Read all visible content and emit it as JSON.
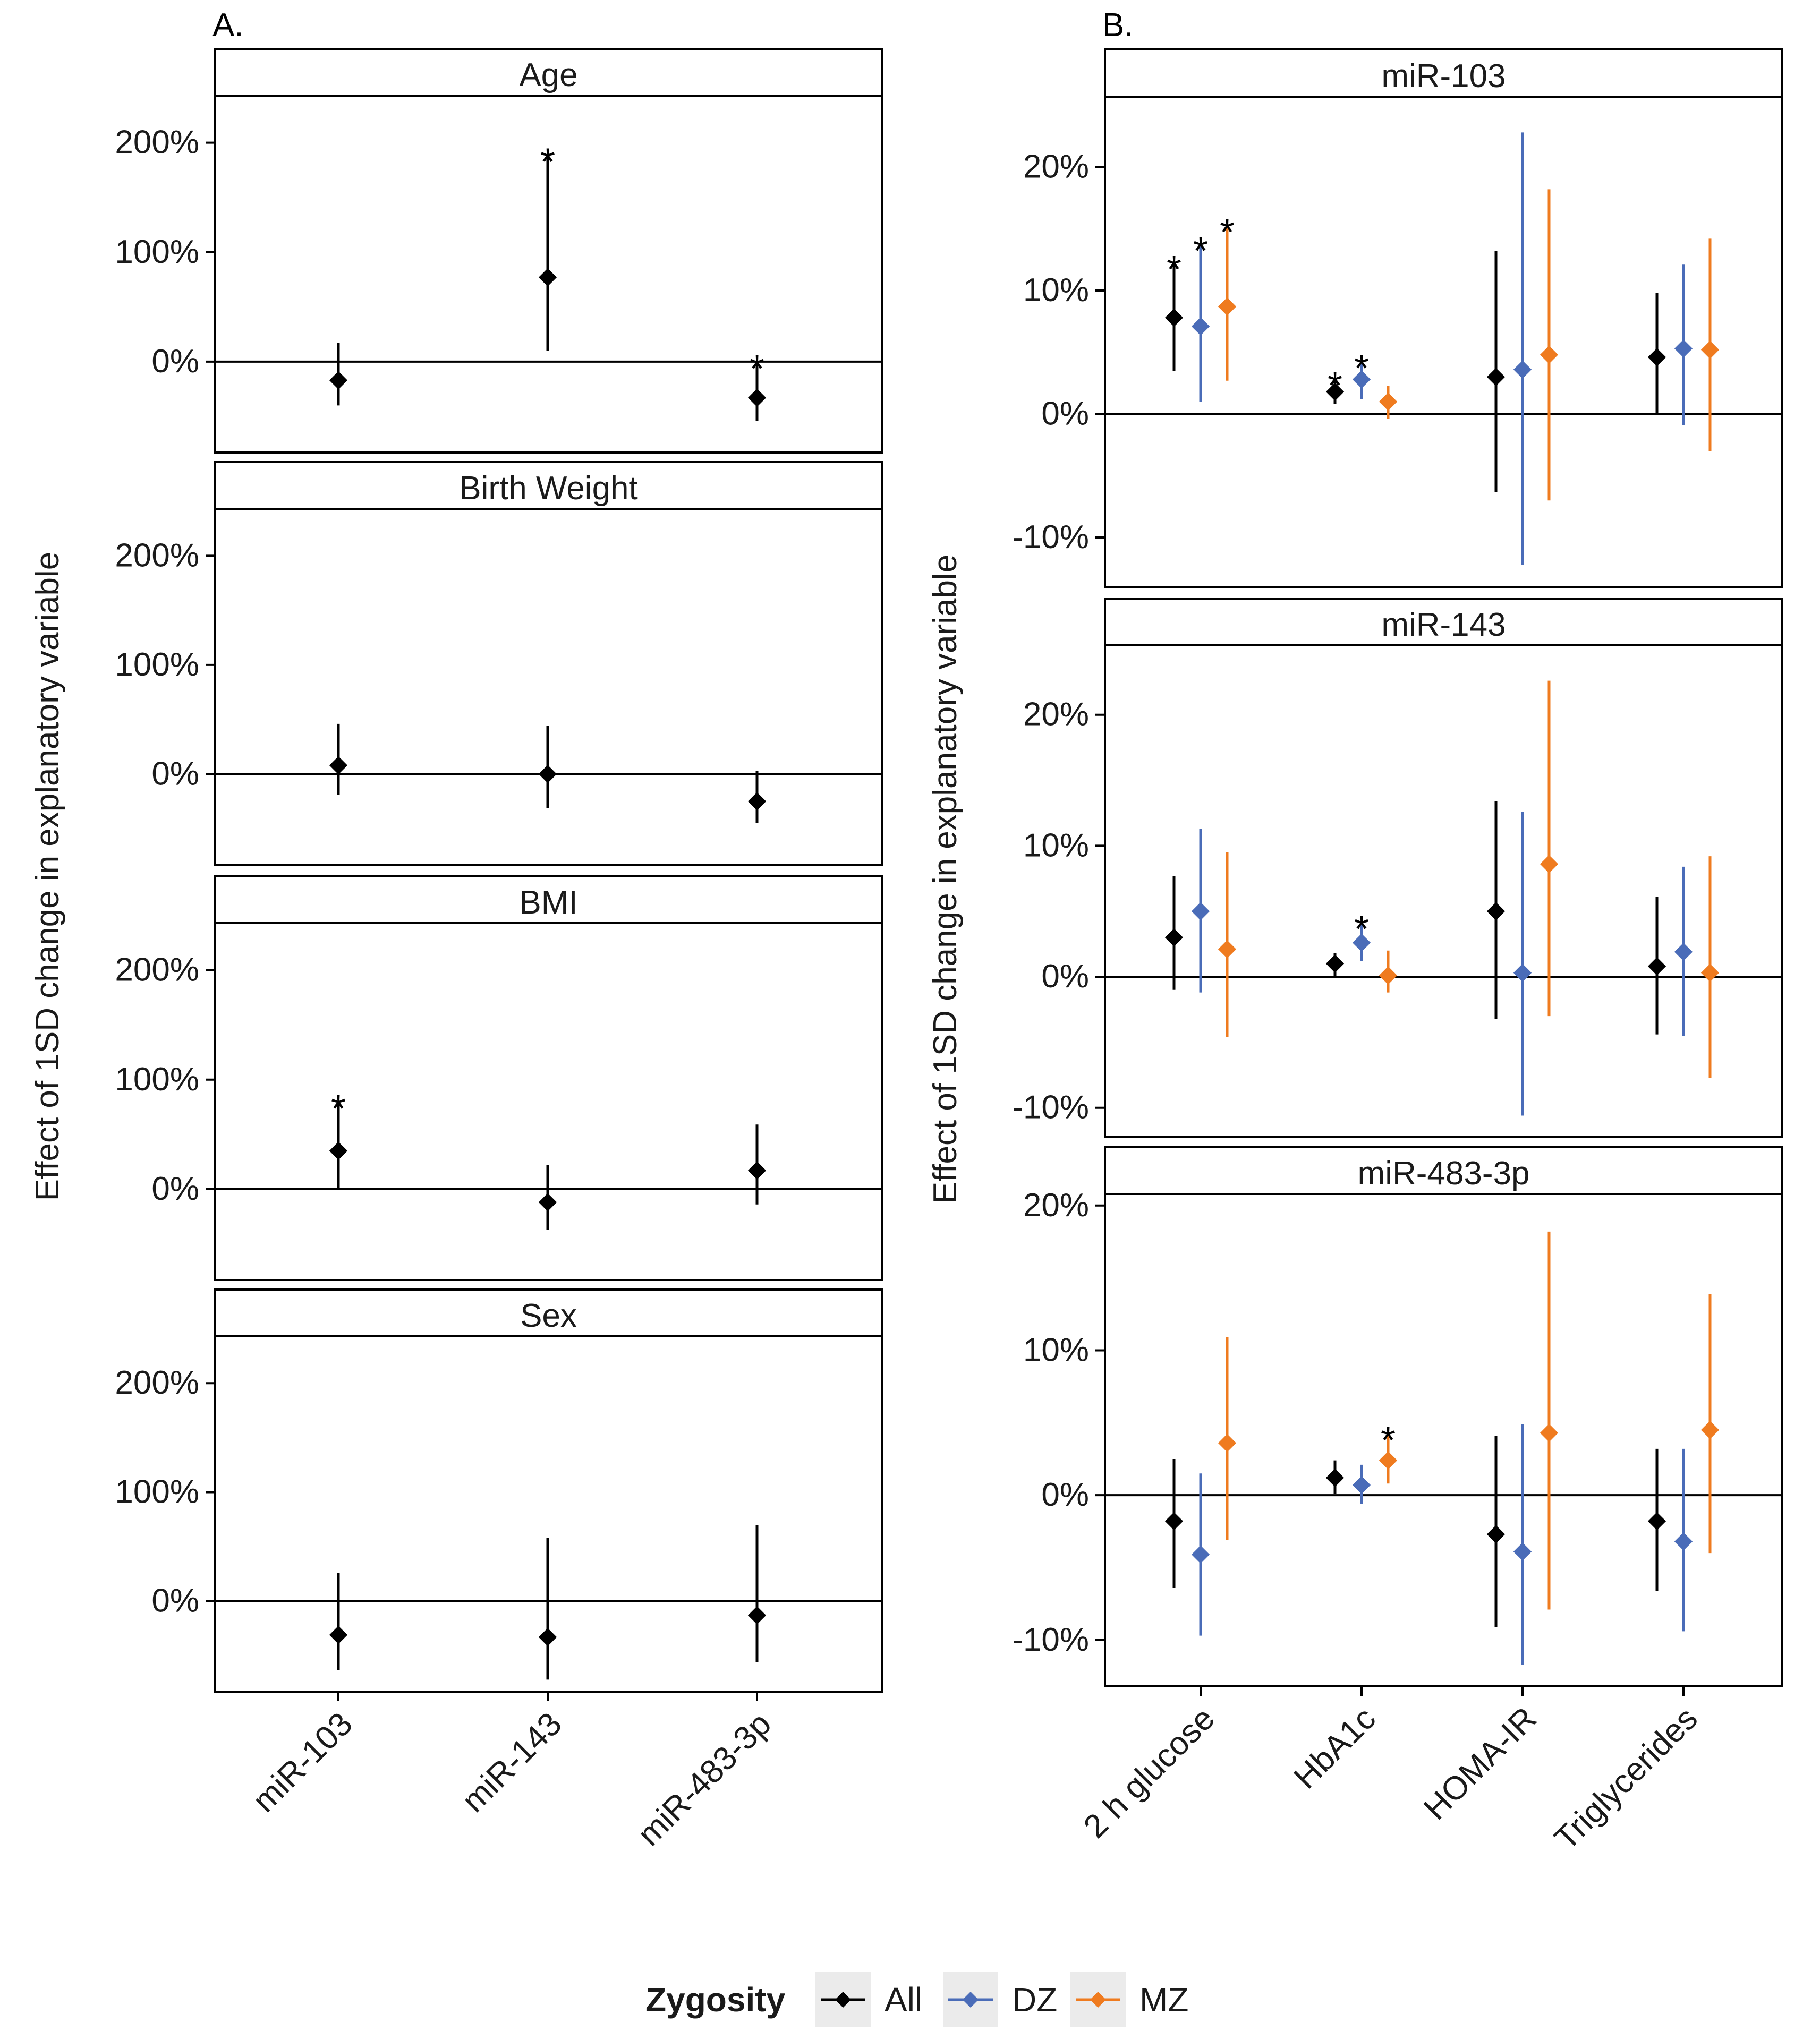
{
  "panel_labels": {
    "a": "A.",
    "b": "B."
  },
  "legend": {
    "title": "Zygosity",
    "items": [
      {
        "name": "All",
        "color": "#000000"
      },
      {
        "name": "DZ",
        "color": "#4a6cb8"
      },
      {
        "name": "MZ",
        "color": "#ef7b1f"
      }
    ]
  },
  "chart_data": [
    {
      "type": "point-range",
      "title": "A.",
      "ylabel": "Effect of 1SD change in explanatory variable",
      "categories": [
        "miR-103",
        "miR-143",
        "miR-483-3p"
      ],
      "yticks": [
        0,
        100,
        200
      ],
      "ytick_labels": [
        "0%",
        "100%",
        "200%"
      ],
      "ylim": [
        -83,
        243
      ],
      "series": [
        "All"
      ],
      "facets": [
        {
          "label": "Age",
          "points": [
            {
              "category": "miR-103",
              "series": "All",
              "value": -17,
              "lower": -40,
              "upper": 17,
              "sig": false
            },
            {
              "category": "miR-143",
              "series": "All",
              "value": 77,
              "lower": 10,
              "upper": 188,
              "sig": true
            },
            {
              "category": "miR-483-3p",
              "series": "All",
              "value": -33,
              "lower": -54,
              "upper": -1,
              "sig": true
            }
          ]
        },
        {
          "label": "Birth Weight",
          "points": [
            {
              "category": "miR-103",
              "series": "All",
              "value": 8,
              "lower": -19,
              "upper": 46,
              "sig": false
            },
            {
              "category": "miR-143",
              "series": "All",
              "value": 0,
              "lower": -31,
              "upper": 44,
              "sig": false
            },
            {
              "category": "miR-483-3p",
              "series": "All",
              "value": -25,
              "lower": -45,
              "upper": 3,
              "sig": false
            }
          ]
        },
        {
          "label": "BMI",
          "points": [
            {
              "category": "miR-103",
              "series": "All",
              "value": 35,
              "lower": 0,
              "upper": 79,
              "sig": true
            },
            {
              "category": "miR-143",
              "series": "All",
              "value": -12,
              "lower": -37,
              "upper": 22,
              "sig": false
            },
            {
              "category": "miR-483-3p",
              "series": "All",
              "value": 17,
              "lower": -14,
              "upper": 59,
              "sig": false
            }
          ]
        },
        {
          "label": "Sex",
          "points": [
            {
              "category": "miR-103",
              "series": "All",
              "value": -31,
              "lower": -63,
              "upper": 26,
              "sig": false
            },
            {
              "category": "miR-143",
              "series": "All",
              "value": -33,
              "lower": -72,
              "upper": 58,
              "sig": false
            },
            {
              "category": "miR-483-3p",
              "series": "All",
              "value": -13,
              "lower": -56,
              "upper": 70,
              "sig": false
            }
          ]
        }
      ]
    },
    {
      "type": "point-range",
      "title": "B.",
      "ylabel": "Effect of 1SD change in explanatory variable",
      "categories": [
        "2 h glucose",
        "HbA1c",
        "HOMA-IR",
        "Triglycerides"
      ],
      "yticks": [
        -10,
        0,
        10,
        20
      ],
      "ytick_labels": [
        "-10%",
        "0%",
        "10%",
        "20%"
      ],
      "series": [
        "All",
        "DZ",
        "MZ"
      ],
      "facets": [
        {
          "label": "miR-103",
          "ylim": [
            -14,
            25.7
          ],
          "points": [
            {
              "category": "2 h glucose",
              "series": "All",
              "value": 7.8,
              "lower": 3.5,
              "upper": 12.2,
              "sig": true
            },
            {
              "category": "2 h glucose",
              "series": "DZ",
              "value": 7.1,
              "lower": 1.0,
              "upper": 13.7,
              "sig": true
            },
            {
              "category": "2 h glucose",
              "series": "MZ",
              "value": 8.7,
              "lower": 2.7,
              "upper": 15.2,
              "sig": true
            },
            {
              "category": "HbA1c",
              "series": "All",
              "value": 1.8,
              "lower": 0.8,
              "upper": 2.8,
              "sig": true
            },
            {
              "category": "HbA1c",
              "series": "DZ",
              "value": 2.8,
              "lower": 1.2,
              "upper": 4.2,
              "sig": true
            },
            {
              "category": "HbA1c",
              "series": "MZ",
              "value": 1.0,
              "lower": -0.4,
              "upper": 2.3,
              "sig": false
            },
            {
              "category": "HOMA-IR",
              "series": "All",
              "value": 3.0,
              "lower": -6.3,
              "upper": 13.2,
              "sig": false
            },
            {
              "category": "HOMA-IR",
              "series": "DZ",
              "value": 3.6,
              "lower": -12.2,
              "upper": 22.8,
              "sig": false
            },
            {
              "category": "HOMA-IR",
              "series": "MZ",
              "value": 4.8,
              "lower": -7.0,
              "upper": 18.2,
              "sig": false
            },
            {
              "category": "Triglycerides",
              "series": "All",
              "value": 4.6,
              "lower": -0.1,
              "upper": 9.8,
              "sig": false
            },
            {
              "category": "Triglycerides",
              "series": "DZ",
              "value": 5.3,
              "lower": -0.9,
              "upper": 12.1,
              "sig": false
            },
            {
              "category": "Triglycerides",
              "series": "MZ",
              "value": 5.2,
              "lower": -3.0,
              "upper": 14.2,
              "sig": false
            }
          ]
        },
        {
          "label": "miR-143",
          "ylim": [
            -12.2,
            25.3
          ],
          "points": [
            {
              "category": "2 h glucose",
              "series": "All",
              "value": 3.0,
              "lower": -1.0,
              "upper": 7.7,
              "sig": false
            },
            {
              "category": "2 h glucose",
              "series": "DZ",
              "value": 5.0,
              "lower": -1.2,
              "upper": 11.3,
              "sig": false
            },
            {
              "category": "2 h glucose",
              "series": "MZ",
              "value": 2.1,
              "lower": -4.6,
              "upper": 9.5,
              "sig": false
            },
            {
              "category": "HbA1c",
              "series": "All",
              "value": 1.0,
              "lower": 0.0,
              "upper": 1.8,
              "sig": false
            },
            {
              "category": "HbA1c",
              "series": "DZ",
              "value": 2.6,
              "lower": 1.2,
              "upper": 4.1,
              "sig": true
            },
            {
              "category": "HbA1c",
              "series": "MZ",
              "value": 0.1,
              "lower": -1.2,
              "upper": 2.0,
              "sig": false
            },
            {
              "category": "HOMA-IR",
              "series": "All",
              "value": 5.0,
              "lower": -3.2,
              "upper": 13.4,
              "sig": false
            },
            {
              "category": "HOMA-IR",
              "series": "DZ",
              "value": 0.3,
              "lower": -10.6,
              "upper": 12.6,
              "sig": false
            },
            {
              "category": "HOMA-IR",
              "series": "MZ",
              "value": 8.6,
              "lower": -3.0,
              "upper": 22.6,
              "sig": false
            },
            {
              "category": "Triglycerides",
              "series": "All",
              "value": 0.8,
              "lower": -4.4,
              "upper": 6.1,
              "sig": false
            },
            {
              "category": "Triglycerides",
              "series": "DZ",
              "value": 1.9,
              "lower": -4.5,
              "upper": 8.4,
              "sig": false
            },
            {
              "category": "Triglycerides",
              "series": "MZ",
              "value": 0.3,
              "lower": -7.7,
              "upper": 9.2,
              "sig": false
            }
          ]
        },
        {
          "label": "miR-483-3p",
          "ylim": [
            -13.2,
            20.8
          ],
          "points": [
            {
              "category": "2 h glucose",
              "series": "All",
              "value": -1.8,
              "lower": -6.4,
              "upper": 2.5,
              "sig": false
            },
            {
              "category": "2 h glucose",
              "series": "DZ",
              "value": -4.1,
              "lower": -9.7,
              "upper": 1.5,
              "sig": false
            },
            {
              "category": "2 h glucose",
              "series": "MZ",
              "value": 3.6,
              "lower": -3.1,
              "upper": 10.9,
              "sig": false
            },
            {
              "category": "HbA1c",
              "series": "All",
              "value": 1.2,
              "lower": 0.1,
              "upper": 2.4,
              "sig": false
            },
            {
              "category": "HbA1c",
              "series": "DZ",
              "value": 0.7,
              "lower": -0.6,
              "upper": 2.1,
              "sig": false
            },
            {
              "category": "HbA1c",
              "series": "MZ",
              "value": 2.4,
              "lower": 0.8,
              "upper": 4.2,
              "sig": true
            },
            {
              "category": "HOMA-IR",
              "series": "All",
              "value": -2.7,
              "lower": -9.1,
              "upper": 4.1,
              "sig": false
            },
            {
              "category": "HOMA-IR",
              "series": "DZ",
              "value": -3.9,
              "lower": -11.7,
              "upper": 4.9,
              "sig": false
            },
            {
              "category": "HOMA-IR",
              "series": "MZ",
              "value": 4.3,
              "lower": -7.9,
              "upper": 18.2,
              "sig": false
            },
            {
              "category": "Triglycerides",
              "series": "All",
              "value": -1.8,
              "lower": -6.6,
              "upper": 3.2,
              "sig": false
            },
            {
              "category": "Triglycerides",
              "series": "DZ",
              "value": -3.2,
              "lower": -9.4,
              "upper": 3.2,
              "sig": false
            },
            {
              "category": "Triglycerides",
              "series": "MZ",
              "value": 4.5,
              "lower": -4.0,
              "upper": 13.9,
              "sig": false
            }
          ]
        }
      ]
    }
  ]
}
